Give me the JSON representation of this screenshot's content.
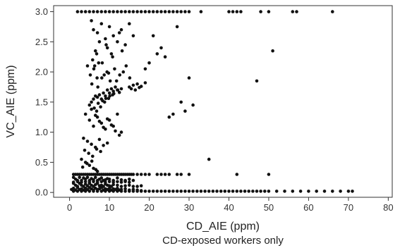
{
  "chart_data": {
    "type": "scatter",
    "title": "",
    "subtitle": "CD-exposed workers only",
    "xlabel": "CD_AIE (ppm)",
    "ylabel": "VC_AIE (ppm)",
    "xlim": [
      -4,
      81
    ],
    "ylim": [
      -0.08,
      3.1
    ],
    "xticks": [
      0,
      10,
      20,
      30,
      40,
      50,
      60,
      70,
      80
    ],
    "yticks": [
      0.0,
      0.5,
      1.0,
      1.5,
      2.0,
      2.5,
      3.0
    ],
    "xtick_labels": [
      "0",
      "10",
      "20",
      "30",
      "40",
      "50",
      "60",
      "70",
      "80"
    ],
    "ytick_labels": [
      "0.0",
      "0.5",
      "1.0",
      "1.5",
      "2.0",
      "2.5",
      "3.0"
    ],
    "grid": false,
    "legend": "none",
    "marker_color": "#111111",
    "series": [
      {
        "x": [
          2,
          3,
          4,
          5,
          6,
          7,
          8,
          9,
          10,
          11,
          12,
          13,
          14,
          15,
          16,
          17,
          18,
          19,
          20,
          21,
          22,
          23,
          24,
          25,
          26,
          27,
          28,
          29,
          30,
          33,
          40,
          41,
          42,
          43,
          48,
          50,
          56,
          57,
          66,
          5.5,
          6,
          7,
          8,
          9,
          10,
          11,
          12,
          13,
          14,
          15,
          16,
          6.5,
          7.5,
          9.5,
          10.5,
          12.5,
          5.8,
          6.8,
          8.2,
          9.2,
          10.8,
          13.2,
          4.5,
          5.2,
          6.1,
          7.3,
          8.1,
          9.4,
          10.2,
          11.3,
          12.6,
          14.2,
          5.6,
          6.9,
          8.7,
          11.8,
          13.5,
          15.1,
          6.3,
          7.1,
          9.8,
          5,
          5.5,
          6,
          6.5,
          7,
          7.5,
          8,
          8.5,
          9,
          9.5,
          10,
          10.5,
          11,
          11.5,
          12,
          12.5,
          13,
          6.2,
          7.2,
          8.3,
          9.1,
          10.1,
          11.1,
          12.1,
          6.8,
          7.8,
          8.8,
          9.8,
          10.8,
          4,
          5,
          6,
          7,
          8,
          9,
          10,
          11,
          12,
          13,
          5.5,
          6.5,
          7.5,
          8.5,
          9.5,
          10.5,
          11.5,
          12.5,
          3.5,
          4.5,
          5.5,
          6.5,
          7.5,
          8.5,
          9.5,
          3.8,
          4.8,
          5.8,
          6.8,
          7.8,
          3,
          4,
          5,
          6,
          7,
          3.3,
          4.4,
          5.6,
          6.6,
          15,
          16,
          17,
          18,
          19,
          15.5,
          16.5,
          17.5,
          19,
          20,
          21,
          22,
          23,
          24,
          25,
          26,
          27,
          28,
          29,
          30,
          31,
          35,
          47,
          51,
          1,
          1.5,
          2,
          2.5,
          3,
          3.5,
          4,
          4.5,
          5,
          5.5,
          6,
          6.5,
          7,
          7.5,
          8,
          8.5,
          9,
          9.5,
          10,
          10.5,
          11,
          11.5,
          12,
          12.5,
          13,
          13.5,
          14,
          14.5,
          15,
          15.5,
          16,
          17,
          18,
          19,
          20,
          22,
          23,
          24,
          25,
          27,
          28,
          30,
          42,
          50,
          1,
          1.5,
          2,
          2.5,
          3,
          3.5,
          4,
          4.5,
          5,
          5.5,
          6,
          6.5,
          7,
          7.5,
          8,
          8.5,
          9,
          9.5,
          10,
          11,
          12,
          13,
          14,
          15,
          16,
          1,
          1.5,
          2,
          2.5,
          3,
          3.5,
          4,
          4.5,
          5,
          5.5,
          6,
          6.5,
          7,
          7.5,
          8,
          8.5,
          9,
          9.5,
          10,
          10.5,
          11,
          12,
          13,
          14,
          15,
          16,
          17,
          18,
          1,
          2,
          3,
          4,
          5,
          6,
          7,
          8,
          9,
          10,
          11,
          12,
          13,
          14,
          15,
          16,
          17,
          18,
          19,
          20,
          21,
          22,
          23,
          24,
          25,
          26,
          27,
          28,
          29,
          30,
          31,
          32,
          33,
          34,
          35,
          36,
          37,
          38,
          39,
          40,
          41,
          42,
          43,
          44,
          45,
          46,
          47,
          48,
          49,
          50,
          52,
          54,
          56,
          58,
          60,
          62,
          64,
          66,
          68,
          70,
          71,
          0.5,
          1,
          1.5,
          2,
          2.5,
          3,
          3.5,
          4,
          4.5,
          5,
          5.5,
          6,
          6.5,
          7,
          7.5,
          8,
          8.5,
          9,
          9.5,
          10,
          10.5,
          11,
          11.5,
          12,
          12.5,
          13,
          14,
          15,
          16,
          17,
          18,
          1,
          2,
          3,
          4,
          5,
          6,
          7,
          8,
          9,
          10,
          11,
          12,
          13,
          14,
          15
        ],
        "y": [
          3,
          3,
          3,
          3,
          3,
          3,
          3,
          3,
          3,
          3,
          3,
          3,
          3,
          3,
          3,
          3,
          3,
          3,
          3,
          3,
          3,
          3,
          3,
          3,
          3,
          3,
          3,
          3,
          3,
          3,
          3,
          3,
          3,
          3,
          3,
          3,
          3,
          3,
          3,
          2.85,
          2.7,
          2.65,
          2.8,
          2.55,
          2.75,
          2.6,
          2.5,
          2.7,
          2.45,
          2.8,
          2.6,
          2.35,
          2.5,
          2.4,
          2.3,
          2.65,
          2.2,
          2.3,
          2.15,
          2.45,
          2.25,
          2.35,
          2.1,
          1.95,
          2.05,
          2.15,
          1.9,
          2.0,
          1.85,
          2.05,
          1.95,
          2.1,
          1.8,
          1.9,
          1.95,
          1.85,
          2.0,
          1.9,
          2.1,
          1.75,
          1.98,
          1.45,
          1.5,
          1.55,
          1.6,
          1.58,
          1.62,
          1.55,
          1.65,
          1.6,
          1.7,
          1.65,
          1.72,
          1.68,
          1.75,
          1.7,
          1.66,
          1.72,
          1.4,
          1.48,
          1.52,
          1.56,
          1.6,
          1.64,
          1.7,
          1.35,
          1.42,
          1.5,
          1.56,
          1.62,
          1.3,
          1.2,
          1.1,
          1.25,
          1.15,
          1.05,
          1.2,
          1.1,
          1.3,
          1.0,
          1.38,
          1.28,
          1.18,
          1.08,
          1.22,
          1.12,
          1.02,
          0.95,
          0.9,
          0.85,
          0.8,
          0.75,
          0.88,
          0.78,
          0.82,
          0.7,
          0.65,
          0.6,
          0.72,
          0.68,
          0.55,
          0.5,
          0.45,
          0.4,
          0.35,
          0.42,
          0.48,
          0.52,
          0.38,
          1.75,
          1.78,
          1.8,
          1.76,
          1.82,
          1.72,
          1.7,
          1.74,
          2.05,
          2.15,
          2.6,
          2.3,
          2.4,
          2.25,
          1.25,
          1.3,
          2.75,
          1.5,
          1.35,
          1.9,
          1.45,
          0.55,
          1.85,
          2.35,
          0.3,
          0.3,
          0.3,
          0.3,
          0.3,
          0.3,
          0.3,
          0.3,
          0.3,
          0.3,
          0.3,
          0.3,
          0.3,
          0.3,
          0.3,
          0.3,
          0.3,
          0.3,
          0.3,
          0.3,
          0.3,
          0.3,
          0.3,
          0.3,
          0.3,
          0.3,
          0.3,
          0.3,
          0.3,
          0.3,
          0.3,
          0.3,
          0.3,
          0.3,
          0.3,
          0.3,
          0.3,
          0.3,
          0.3,
          0.3,
          0.3,
          0.3,
          0.3,
          0.3,
          0.25,
          0.22,
          0.2,
          0.25,
          0.2,
          0.24,
          0.22,
          0.25,
          0.2,
          0.23,
          0.21,
          0.25,
          0.2,
          0.22,
          0.24,
          0.2,
          0.21,
          0.23,
          0.22,
          0.2,
          0.24,
          0.21,
          0.2,
          0.22,
          0.2,
          0.15,
          0.12,
          0.1,
          0.15,
          0.12,
          0.1,
          0.14,
          0.11,
          0.15,
          0.12,
          0.1,
          0.13,
          0.15,
          0.11,
          0.12,
          0.1,
          0.14,
          0.12,
          0.11,
          0.1,
          0.13,
          0.12,
          0.1,
          0.11,
          0.12,
          0.1,
          0.1,
          0.11,
          0.02,
          0.02,
          0.02,
          0.02,
          0.02,
          0.02,
          0.02,
          0.02,
          0.02,
          0.02,
          0.02,
          0.02,
          0.02,
          0.02,
          0.02,
          0.02,
          0.02,
          0.02,
          0.02,
          0.02,
          0.02,
          0.02,
          0.02,
          0.02,
          0.02,
          0.02,
          0.02,
          0.02,
          0.02,
          0.02,
          0.02,
          0.02,
          0.02,
          0.02,
          0.02,
          0.02,
          0.02,
          0.02,
          0.02,
          0.02,
          0.02,
          0.02,
          0.02,
          0.02,
          0.02,
          0.02,
          0.02,
          0.02,
          0.02,
          0.02,
          0.02,
          0.02,
          0.02,
          0.02,
          0.02,
          0.02,
          0.02,
          0.02,
          0.02,
          0.02,
          0.02,
          0.05,
          0.07,
          0.04,
          0.08,
          0.05,
          0.06,
          0.04,
          0.07,
          0.05,
          0.08,
          0.06,
          0.04,
          0.07,
          0.05,
          0.06,
          0.08,
          0.04,
          0.06,
          0.05,
          0.07,
          0.04,
          0.06,
          0.05,
          0.07,
          0.04,
          0.05,
          0.06,
          0.04,
          0.05,
          0.04,
          0.03,
          0.17,
          0.18,
          0.17,
          0.18,
          0.17,
          0.18,
          0.17,
          0.18,
          0.17,
          0.18,
          0.17,
          0.18,
          0.17,
          0.18,
          0.17
        ]
      }
    ]
  }
}
